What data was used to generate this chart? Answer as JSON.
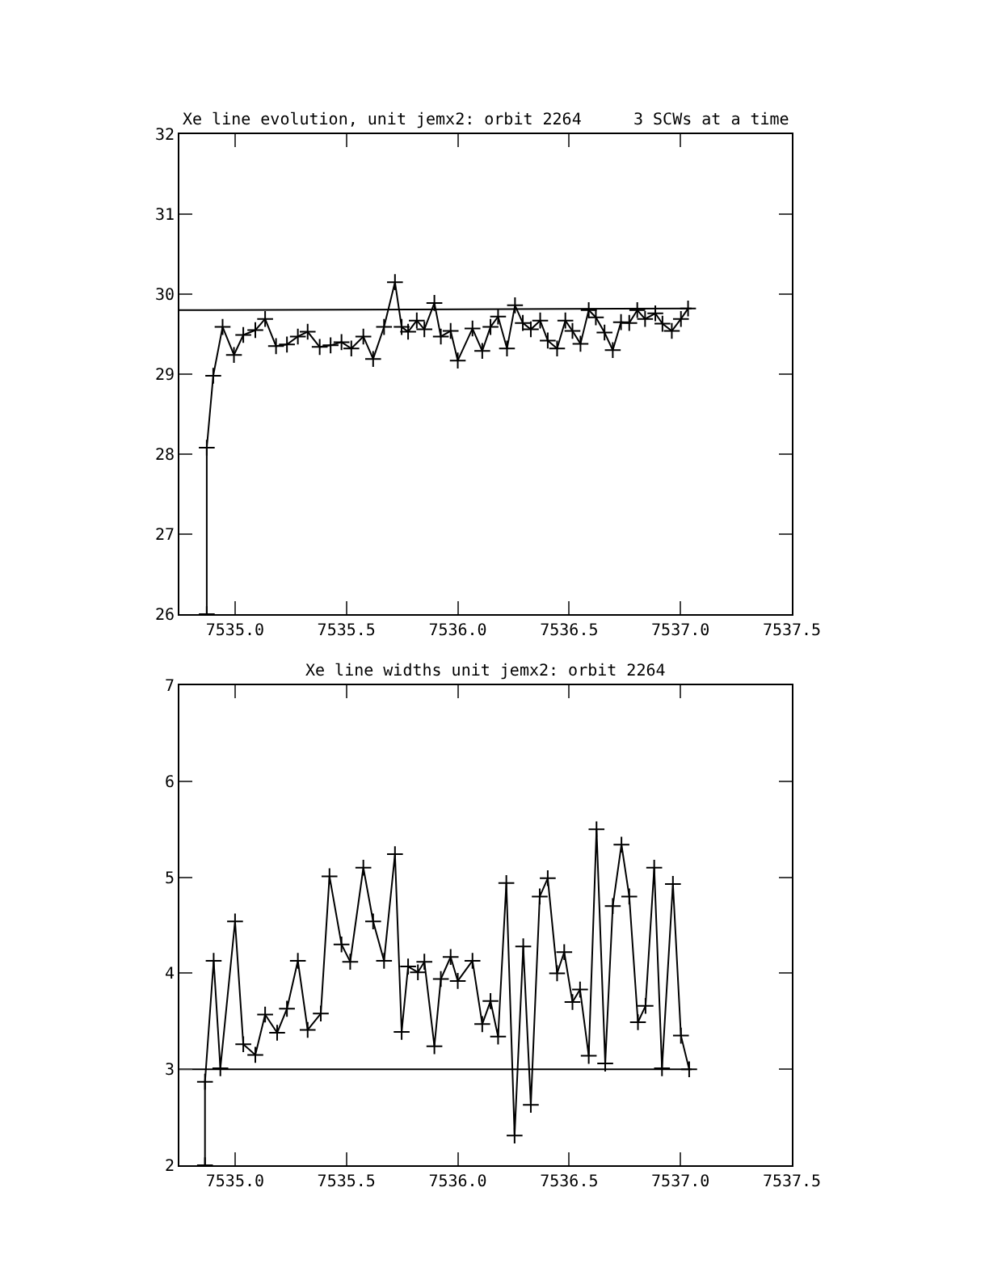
{
  "chart_data": [
    {
      "type": "line",
      "title": "Xe line evolution, unit jemx2: orbit 2264",
      "subtitle": "3 SCWs at a time",
      "xlim": [
        7534.75,
        7537.5
      ],
      "xticks": [
        {
          "value": 7535,
          "label": "7535.0"
        },
        7535.5,
        {
          "value": 7536,
          "label": "7536.0"
        },
        7536.5,
        {
          "value": 7537,
          "label": "7537.0"
        },
        7537.5
      ],
      "ylim": [
        26,
        32
      ],
      "yticks": [
        26,
        27,
        28,
        29,
        30,
        31,
        32
      ],
      "line_style": "solid",
      "series": [
        {
          "color": "#000000",
          "marker": "cross",
          "x": [
            7534.873,
            7534.873,
            7534.902,
            7534.944,
            7534.995,
            7535.037,
            7535.091,
            7535.135,
            7535.184,
            7535.233,
            7535.282,
            7535.326,
            7535.38,
            7535.429,
            7535.478,
            7535.522,
            7535.576,
            7535.62,
            7535.669,
            7535.718,
            7535.748,
            7535.777,
            7535.816,
            7535.85,
            7535.895,
            7535.924,
            7535.968,
            7536.0,
            7536.066,
            7536.11,
            7536.147,
            7536.181,
            7536.221,
            7536.257,
            7536.292,
            7536.328,
            7536.37,
            7536.404,
            7536.446,
            7536.483,
            7536.515,
            7536.551,
            7536.588,
            7536.62,
            7536.659,
            7536.696,
            7536.733,
            7536.77,
            7536.806,
            7536.841,
            7536.887,
            7536.919,
            7536.961,
            7537.002,
            7537.034
          ],
          "values": [
            26,
            28.08,
            28.98,
            29.59,
            29.24,
            29.49,
            29.55,
            29.69,
            29.35,
            29.37,
            29.47,
            29.53,
            29.34,
            29.36,
            29.4,
            29.32,
            29.47,
            29.19,
            29.59,
            30.15,
            29.59,
            29.53,
            29.67,
            29.56,
            29.89,
            29.47,
            29.54,
            29.17,
            29.57,
            29.29,
            29.59,
            29.72,
            29.32,
            29.86,
            29.64,
            29.56,
            29.67,
            29.42,
            29.32,
            29.67,
            29.54,
            29.38,
            29.8,
            29.71,
            29.52,
            29.3,
            29.65,
            29.64,
            29.8,
            29.69,
            29.76,
            29.63,
            29.54,
            29.69,
            29.82
          ]
        },
        {
          "color": "#000000",
          "marker": "none",
          "x": [
            7534.75,
            7537.05
          ],
          "values": [
            29.8,
            29.82
          ]
        }
      ]
    },
    {
      "type": "line",
      "title": "Xe line widths unit jemx2: orbit 2264",
      "xlim": [
        7534.75,
        7537.5
      ],
      "xticks": [
        {
          "value": 7535,
          "label": "7535.0"
        },
        7535.5,
        {
          "value": 7536,
          "label": "7536.0"
        },
        7536.5,
        {
          "value": 7537,
          "label": "7537.0"
        },
        7537.5
      ],
      "ylim": [
        2,
        7
      ],
      "yticks": [
        2,
        3,
        4,
        5,
        6,
        7
      ],
      "line_style": "solid",
      "series": [
        {
          "color": "#000000",
          "marker": "cross",
          "x": [
            7534.865,
            7534.865,
            7534.904,
            7534.934,
            7535.0,
            7535.037,
            7535.091,
            7535.135,
            7535.189,
            7535.233,
            7535.282,
            7535.326,
            7535.385,
            7535.424,
            7535.478,
            7535.517,
            7535.576,
            7535.62,
            7535.669,
            7535.718,
            7535.748,
            7535.777,
            7535.821,
            7535.85,
            7535.895,
            7535.924,
            7535.968,
            7536.0,
            7536.066,
            7536.11,
            7536.147,
            7536.181,
            7536.218,
            7536.255,
            7536.294,
            7536.328,
            7536.368,
            7536.404,
            7536.446,
            7536.478,
            7536.515,
            7536.549,
            7536.588,
            7536.623,
            7536.662,
            7536.696,
            7536.735,
            7536.77,
            7536.809,
            7536.843,
            7536.882,
            7536.917,
            7536.966,
            7537.002,
            7537.039
          ],
          "values": [
            2,
            2.87,
            4.13,
            3.01,
            4.54,
            3.26,
            3.15,
            3.57,
            3.38,
            3.63,
            4.13,
            3.41,
            3.58,
            5.01,
            4.3,
            4.12,
            5.1,
            4.54,
            4.13,
            5.24,
            3.39,
            4.07,
            4.01,
            4.12,
            3.24,
            3.94,
            4.17,
            3.92,
            4.13,
            3.47,
            3.71,
            3.34,
            4.94,
            2.31,
            4.28,
            2.63,
            4.8,
            4.99,
            4.0,
            4.22,
            3.7,
            3.83,
            3.14,
            5.5,
            3.06,
            4.7,
            5.34,
            4.8,
            3.49,
            3.66,
            5.1,
            3.01,
            4.93,
            3.35,
            3.0
          ]
        },
        {
          "color": "#000000",
          "marker": "none",
          "x": [
            7534.75,
            7537.05
          ],
          "values": [
            3.0,
            3.0
          ]
        }
      ]
    }
  ]
}
